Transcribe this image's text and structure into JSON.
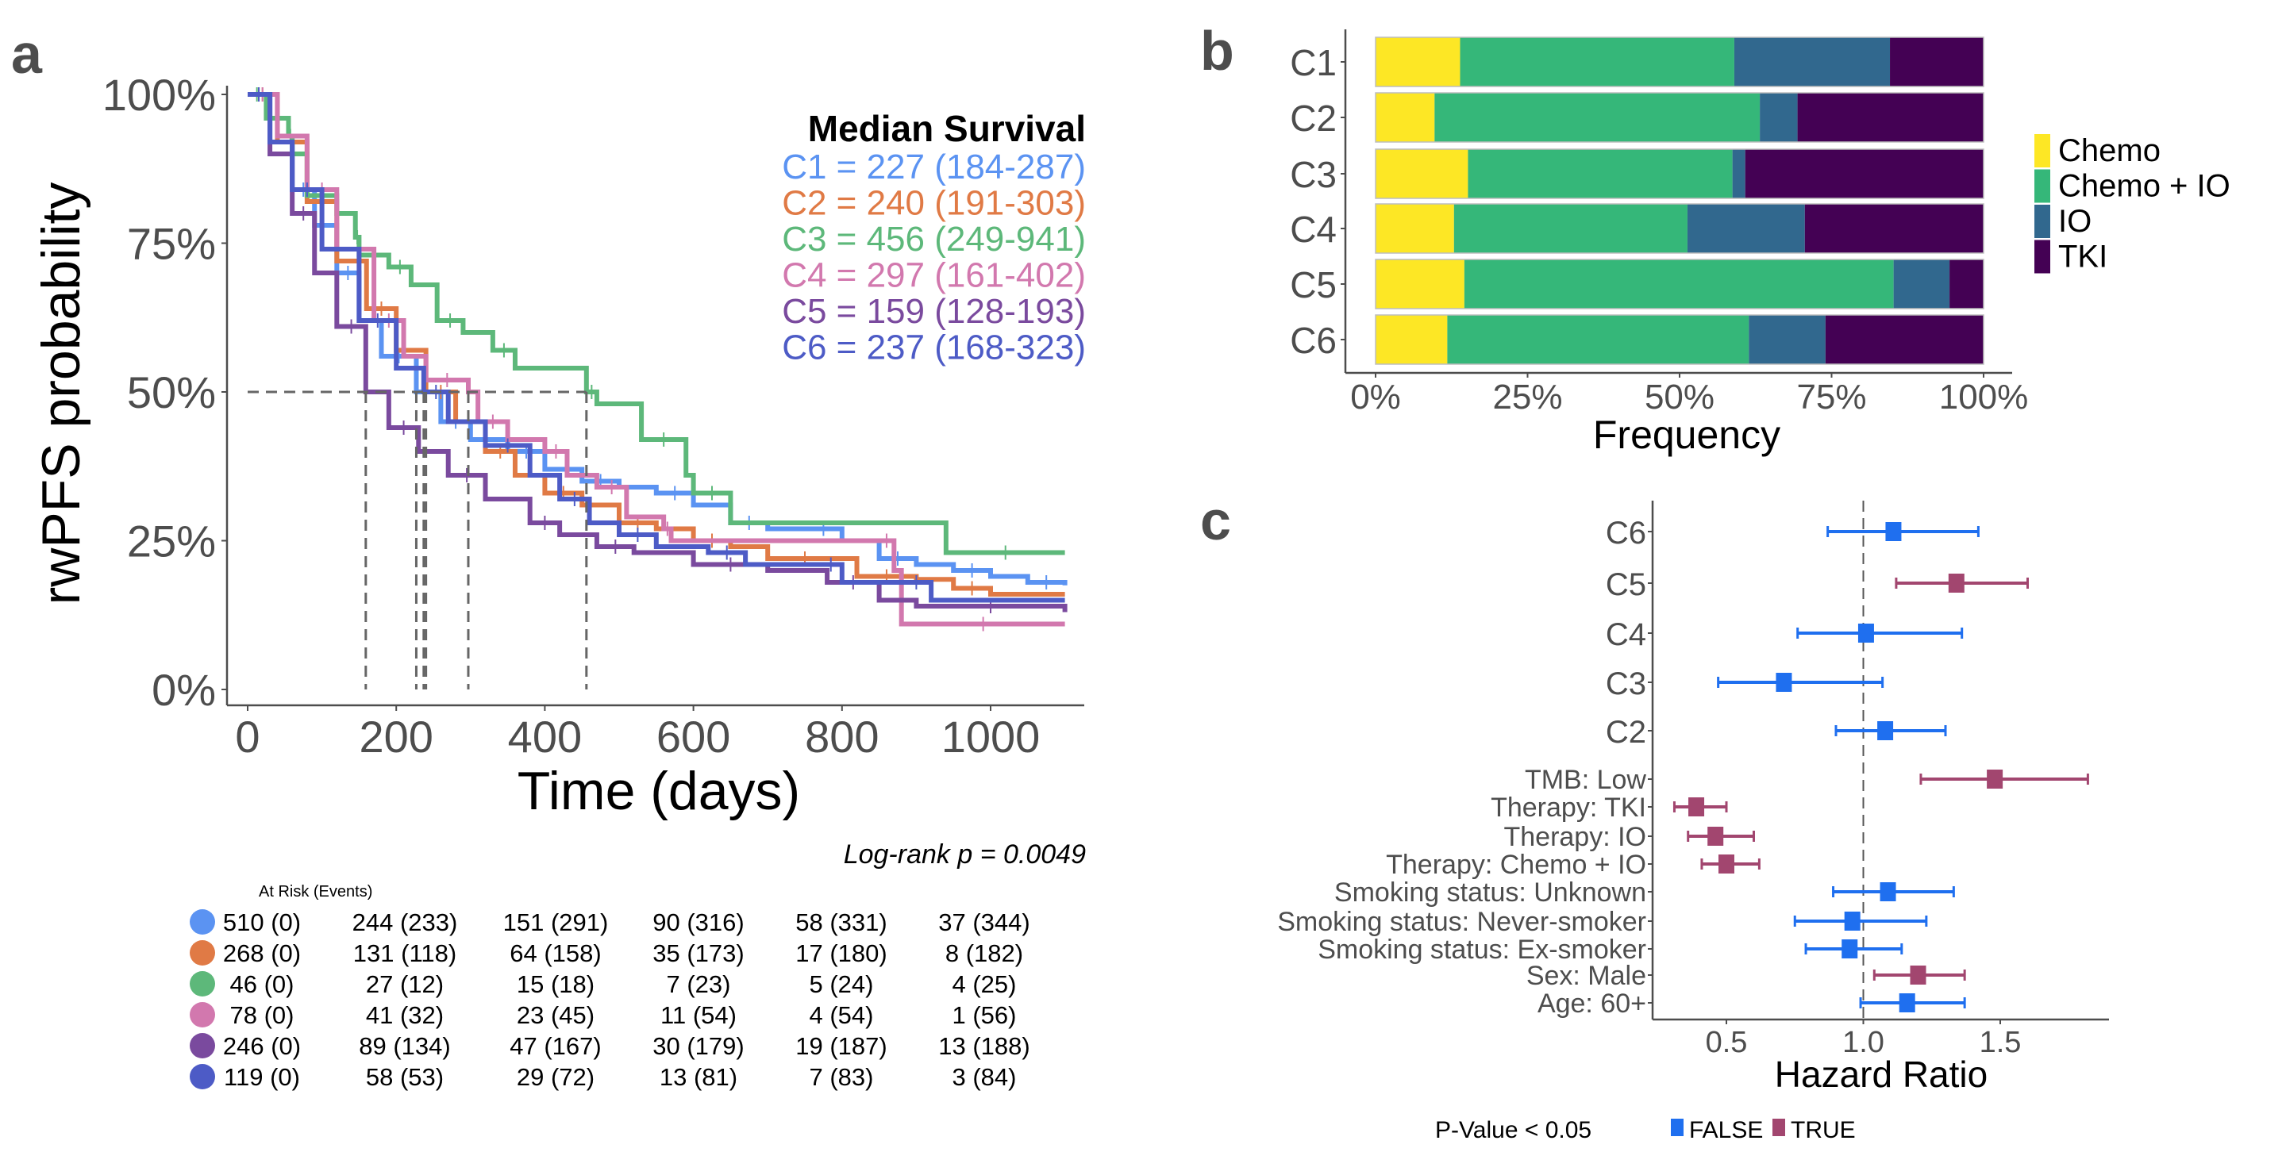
{
  "figure": {
    "panel_letters": [
      "a",
      "b",
      "c"
    ]
  },
  "chart_data": [
    {
      "type": "line",
      "subtype": "kaplan-meier",
      "panel": "a",
      "xlabel": "Time (days)",
      "ylabel": "rwPFS probability",
      "xlim": [
        0,
        1120
      ],
      "ylim": [
        0,
        1
      ],
      "x_ticks": [
        0,
        200,
        400,
        600,
        800,
        1000
      ],
      "x_tick_labels": [
        "0",
        "200",
        "400",
        "600",
        "800",
        "1000"
      ],
      "y_ticks": [
        0,
        0.25,
        0.5,
        0.75,
        1.0
      ],
      "y_tick_labels": [
        "0%",
        "25%",
        "50%",
        "75%",
        "100%"
      ],
      "grid": false,
      "median_reference_line": 0.5,
      "legend_title": "Median Survival",
      "legend_position": "top-right",
      "annotation": "Log-rank p = 0.0049",
      "series": [
        {
          "name": "C1",
          "color": "#5B93F2",
          "median": 227,
          "ci": "184-287",
          "label": "C1 = 227 (184-287)",
          "x": [
            0,
            30,
            60,
            90,
            120,
            150,
            180,
            227,
            260,
            300,
            350,
            400,
            450,
            500,
            550,
            600,
            650,
            700,
            750,
            800,
            850,
            900,
            950,
            1000,
            1050,
            1100
          ],
          "y": [
            1.0,
            0.92,
            0.84,
            0.78,
            0.7,
            0.62,
            0.56,
            0.5,
            0.45,
            0.42,
            0.4,
            0.37,
            0.35,
            0.34,
            0.33,
            0.31,
            0.28,
            0.27,
            0.27,
            0.25,
            0.22,
            0.21,
            0.2,
            0.19,
            0.18,
            0.175
          ]
        },
        {
          "name": "C2",
          "color": "#E07A45",
          "median": 240,
          "ci": "191-303",
          "label": "C2 = 240 (191-303)",
          "x": [
            0,
            40,
            80,
            120,
            160,
            200,
            240,
            280,
            320,
            360,
            400,
            450,
            500,
            550,
            600,
            650,
            700,
            800,
            820,
            900,
            950,
            1000,
            1100
          ],
          "y": [
            1.0,
            0.92,
            0.82,
            0.72,
            0.64,
            0.57,
            0.5,
            0.45,
            0.4,
            0.36,
            0.33,
            0.31,
            0.28,
            0.27,
            0.25,
            0.24,
            0.22,
            0.22,
            0.19,
            0.185,
            0.17,
            0.16,
            0.16
          ]
        },
        {
          "name": "C3",
          "color": "#5DB87A",
          "median": 456,
          "ci": "249-941",
          "label": "C3 = 456 (249-941)",
          "x": [
            0,
            25,
            55,
            60,
            80,
            120,
            145,
            150,
            190,
            220,
            255,
            290,
            330,
            360,
            456,
            470,
            530,
            590,
            600,
            650,
            940,
            1100
          ],
          "y": [
            1.0,
            0.96,
            0.93,
            0.9,
            0.83,
            0.8,
            0.76,
            0.73,
            0.71,
            0.68,
            0.62,
            0.6,
            0.57,
            0.54,
            0.5,
            0.48,
            0.42,
            0.36,
            0.33,
            0.28,
            0.23,
            0.23
          ]
        },
        {
          "name": "C4",
          "color": "#D278AE",
          "median": 297,
          "ci": "161-402",
          "label": "C4 = 297 (161-402)",
          "x": [
            0,
            40,
            80,
            120,
            170,
            210,
            240,
            297,
            310,
            350,
            400,
            430,
            470,
            510,
            560,
            570,
            850,
            870,
            880,
            1100
          ],
          "y": [
            1.0,
            0.93,
            0.84,
            0.74,
            0.62,
            0.56,
            0.52,
            0.5,
            0.45,
            0.42,
            0.4,
            0.36,
            0.34,
            0.29,
            0.27,
            0.25,
            0.25,
            0.2,
            0.11,
            0.11
          ]
        },
        {
          "name": "C5",
          "color": "#7A4A9E",
          "median": 159,
          "ci": "128-193",
          "label": "C5 = 159 (128-193)",
          "x": [
            0,
            30,
            60,
            90,
            120,
            159,
            190,
            230,
            270,
            320,
            380,
            420,
            470,
            520,
            600,
            700,
            780,
            850,
            900,
            1100
          ],
          "y": [
            1.0,
            0.9,
            0.8,
            0.7,
            0.61,
            0.5,
            0.44,
            0.4,
            0.36,
            0.32,
            0.28,
            0.26,
            0.24,
            0.23,
            0.21,
            0.2,
            0.18,
            0.15,
            0.14,
            0.13
          ]
        },
        {
          "name": "C6",
          "color": "#4D5BC6",
          "median": 237,
          "ci": "168-323",
          "label": "C6 = 237 (168-323)",
          "x": [
            0,
            30,
            60,
            100,
            150,
            200,
            237,
            270,
            320,
            380,
            420,
            460,
            500,
            550,
            620,
            670,
            770,
            800,
            880,
            920,
            1100
          ],
          "y": [
            1.0,
            0.92,
            0.84,
            0.74,
            0.62,
            0.54,
            0.5,
            0.45,
            0.41,
            0.36,
            0.32,
            0.28,
            0.26,
            0.24,
            0.23,
            0.21,
            0.21,
            0.18,
            0.18,
            0.15,
            0.15
          ]
        }
      ],
      "risk_table": {
        "title": "At Risk (Events)",
        "rows": [
          {
            "name": "C1",
            "color": "#5B93F2",
            "values": [
              "510 (0)",
              "244 (233)",
              "151 (291)",
              "90 (316)",
              "58 (331)",
              "37 (344)"
            ]
          },
          {
            "name": "C2",
            "color": "#E07A45",
            "values": [
              "268 (0)",
              "131 (118)",
              "64 (158)",
              "35 (173)",
              "17 (180)",
              "8 (182)"
            ]
          },
          {
            "name": "C3",
            "color": "#5DB87A",
            "values": [
              "46 (0)",
              "27 (12)",
              "15 (18)",
              "7 (23)",
              "5 (24)",
              "4 (25)"
            ]
          },
          {
            "name": "C4",
            "color": "#D278AE",
            "values": [
              "78 (0)",
              "41 (32)",
              "23 (45)",
              "11 (54)",
              "4 (54)",
              "1 (56)"
            ]
          },
          {
            "name": "C5",
            "color": "#7A4A9E",
            "values": [
              "246 (0)",
              "89 (134)",
              "47 (167)",
              "30 (179)",
              "19 (187)",
              "13 (188)"
            ]
          },
          {
            "name": "C6",
            "color": "#4D5BC6",
            "values": [
              "119 (0)",
              "58 (53)",
              "29 (72)",
              "13 (81)",
              "7 (83)",
              "3 (84)"
            ]
          }
        ]
      }
    },
    {
      "type": "bar",
      "subtype": "stacked-horizontal-percent",
      "panel": "b",
      "xlabel": "Frequency",
      "ylabel": "",
      "xlim": [
        0,
        1
      ],
      "x_ticks": [
        0,
        0.25,
        0.5,
        0.75,
        1.0
      ],
      "x_tick_labels": [
        "0%",
        "25%",
        "50%",
        "75%",
        "100%"
      ],
      "categories": [
        "C1",
        "C2",
        "C3",
        "C4",
        "C5",
        "C6"
      ],
      "legend_position": "right",
      "series": [
        {
          "name": "Chemo",
          "color": "#FDE725",
          "values": [
            0.139,
            0.097,
            0.152,
            0.129,
            0.146,
            0.118
          ]
        },
        {
          "name": "Chemo + IO",
          "color": "#35B779",
          "values": [
            0.451,
            0.535,
            0.435,
            0.384,
            0.706,
            0.496
          ]
        },
        {
          "name": "IO",
          "color": "#31688E",
          "values": [
            0.256,
            0.062,
            0.021,
            0.193,
            0.092,
            0.126
          ]
        },
        {
          "name": "TKI",
          "color": "#440154",
          "values": [
            0.154,
            0.306,
            0.392,
            0.294,
            0.056,
            0.26
          ]
        }
      ]
    },
    {
      "type": "scatter",
      "subtype": "forest-plot",
      "panel": "c",
      "xlabel": "Hazard Ratio",
      "xlim": [
        0.23,
        1.89
      ],
      "x_ticks": [
        0.5,
        1.0,
        1.5
      ],
      "x_tick_labels": [
        "0.5",
        "1.0",
        "1.5"
      ],
      "reference_line": 1.0,
      "legend_title": "P-Value < 0.05",
      "legend_position": "bottom",
      "legend": [
        {
          "label": "FALSE",
          "color": "#1F6FEF"
        },
        {
          "label": "TRUE",
          "color": "#A2466F"
        }
      ],
      "rows": [
        {
          "label": "C6",
          "hr": 1.11,
          "lo": 0.87,
          "hi": 1.42,
          "significant": false
        },
        {
          "label": "C5",
          "hr": 1.34,
          "lo": 1.12,
          "hi": 1.6,
          "significant": true
        },
        {
          "label": "C4",
          "hr": 1.01,
          "lo": 0.76,
          "hi": 1.36,
          "significant": false
        },
        {
          "label": "C3",
          "hr": 0.71,
          "lo": 0.47,
          "hi": 1.07,
          "significant": false
        },
        {
          "label": "C2",
          "hr": 1.08,
          "lo": 0.9,
          "hi": 1.3,
          "significant": false
        },
        {
          "label": "TMB: Low",
          "hr": 1.48,
          "lo": 1.21,
          "hi": 1.82,
          "significant": true
        },
        {
          "label": "Therapy: TKI",
          "hr": 0.39,
          "lo": 0.31,
          "hi": 0.5,
          "significant": true
        },
        {
          "label": "Therapy: IO",
          "hr": 0.46,
          "lo": 0.36,
          "hi": 0.6,
          "significant": true
        },
        {
          "label": "Therapy: Chemo + IO",
          "hr": 0.5,
          "lo": 0.41,
          "hi": 0.62,
          "significant": true
        },
        {
          "label": "Smoking status: Unknown",
          "hr": 1.09,
          "lo": 0.89,
          "hi": 1.33,
          "significant": false
        },
        {
          "label": "Smoking status: Never-smoker",
          "hr": 0.96,
          "lo": 0.75,
          "hi": 1.23,
          "significant": false
        },
        {
          "label": "Smoking status: Ex-smoker",
          "hr": 0.95,
          "lo": 0.79,
          "hi": 1.14,
          "significant": false
        },
        {
          "label": "Sex: Male",
          "hr": 1.2,
          "lo": 1.04,
          "hi": 1.37,
          "significant": true
        },
        {
          "label": "Age: 60+",
          "hr": 1.16,
          "lo": 0.99,
          "hi": 1.37,
          "significant": false
        }
      ]
    }
  ]
}
